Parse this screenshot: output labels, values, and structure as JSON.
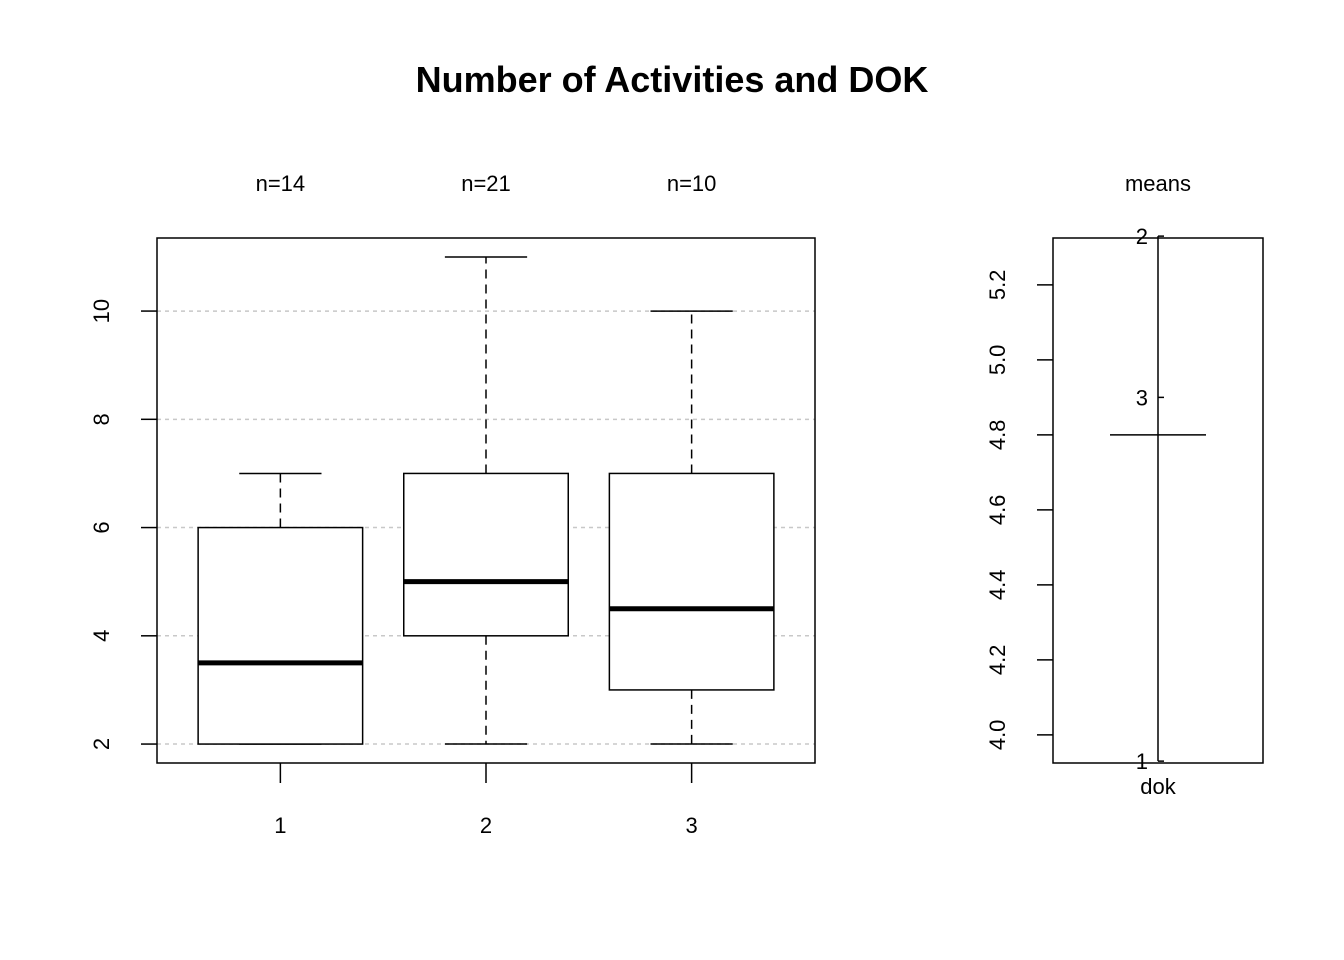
{
  "chart_data": [
    {
      "type": "box",
      "title": "Number of Activities and DOK",
      "xlabel": "",
      "ylabel": "",
      "categories": [
        "1",
        "2",
        "3"
      ],
      "counts_labels": [
        "n=14",
        "n=21",
        "n=10"
      ],
      "boxes": [
        {
          "category": "1",
          "n": 14,
          "whisker_low": 2,
          "q1": 2,
          "median": 3.5,
          "q3": 6,
          "whisker_high": 7
        },
        {
          "category": "2",
          "n": 21,
          "whisker_low": 2,
          "q1": 4,
          "median": 5,
          "q3": 7,
          "whisker_high": 11
        },
        {
          "category": "3",
          "n": 10,
          "whisker_low": 2,
          "q1": 3,
          "median": 4.5,
          "q3": 7,
          "whisker_high": 10
        }
      ],
      "xlim": [
        0.4,
        3.6
      ],
      "ylim": [
        1.65,
        11.35
      ],
      "yticks": [
        "2",
        "4",
        "6",
        "8",
        "10"
      ],
      "grid": "horizontal dashed at y ticks",
      "colors": {
        "box_stroke": "#000000",
        "grid": "#c8c8c8"
      }
    },
    {
      "type": "means",
      "label": "means",
      "xlabel": "dok",
      "ylim": [
        3.925,
        5.325
      ],
      "yticks": [
        "4.0",
        "4.2",
        "4.4",
        "4.6",
        "4.8",
        "5.0",
        "5.2"
      ],
      "group_means": [
        {
          "group": "1",
          "mean": 3.93
        },
        {
          "group": "2",
          "mean": 5.33
        },
        {
          "group": "3",
          "mean": 4.9
        }
      ],
      "grand_mean": 4.8
    }
  ]
}
